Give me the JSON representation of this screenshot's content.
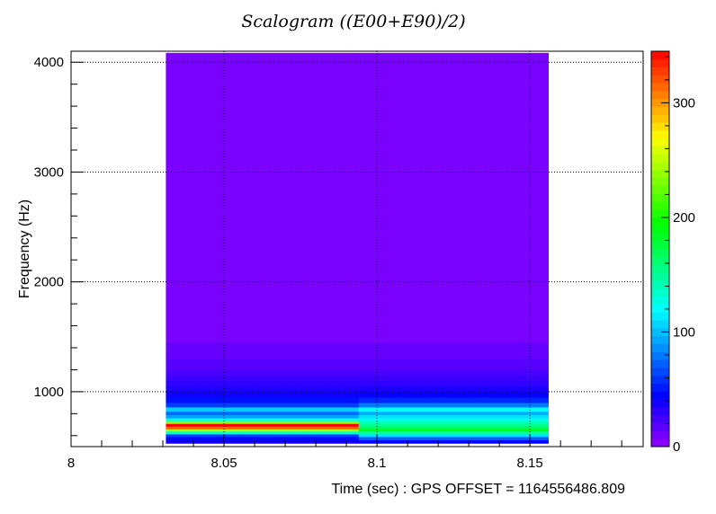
{
  "chart_data": {
    "type": "heatmap",
    "title": "Scalogram ((E00+E90)/2)",
    "xlabel": "Time (sec) : GPS OFFSET = 1164556486.809",
    "ylabel": "Frequency (Hz)",
    "xlim": [
      8.0,
      8.187
    ],
    "ylim": [
      500,
      4100
    ],
    "x_ticks": [
      "8",
      "8.05",
      "8.1",
      "8.15"
    ],
    "y_ticks": [
      "1000",
      "2000",
      "3000",
      "4000"
    ],
    "colorbar_ticks": [
      "0",
      "100",
      "200",
      "300"
    ],
    "zlim": [
      0,
      345
    ],
    "palette": "rainbow",
    "grid": true,
    "data_x_range": [
      8.031,
      8.156
    ],
    "data_y_range": [
      530,
      4085
    ],
    "segments": [
      {
        "x": [
          8.031,
          8.094
        ],
        "bands": [
          {
            "y": [
              530,
              560
            ],
            "z": 38
          },
          {
            "y": [
              560,
              590
            ],
            "z": 46
          },
          {
            "y": [
              590,
              615
            ],
            "z": 62
          },
          {
            "y": [
              615,
              640
            ],
            "z": 130
          },
          {
            "y": [
              640,
              660
            ],
            "z": 245
          },
          {
            "y": [
              660,
              685
            ],
            "z": 315
          },
          {
            "y": [
              685,
              710
            ],
            "z": 345
          },
          {
            "y": [
              710,
              735
            ],
            "z": 240
          },
          {
            "y": [
              735,
              760
            ],
            "z": 120
          },
          {
            "y": [
              760,
              790
            ],
            "z": 92
          },
          {
            "y": [
              790,
              820
            ],
            "z": 75
          },
          {
            "y": [
              820,
              860
            ],
            "z": 105
          },
          {
            "y": [
              860,
              900
            ],
            "z": 62
          },
          {
            "y": [
              900,
              950
            ],
            "z": 48
          },
          {
            "y": [
              950,
              1000
            ],
            "z": 40
          },
          {
            "y": [
              1000,
              1050
            ],
            "z": 35
          },
          {
            "y": [
              1050,
              1100
            ],
            "z": 30
          },
          {
            "y": [
              1100,
              1150
            ],
            "z": 26
          },
          {
            "y": [
              1150,
              1200
            ],
            "z": 22
          },
          {
            "y": [
              1200,
              1300
            ],
            "z": 18
          },
          {
            "y": [
              1300,
              1450
            ],
            "z": 14
          },
          {
            "y": [
              1450,
              4085
            ],
            "z": 8
          }
        ]
      },
      {
        "x": [
          8.094,
          8.156
        ],
        "bands": [
          {
            "y": [
              530,
              560
            ],
            "z": 42
          },
          {
            "y": [
              560,
              590
            ],
            "z": 70
          },
          {
            "y": [
              590,
              615
            ],
            "z": 110
          },
          {
            "y": [
              615,
              640
            ],
            "z": 145
          },
          {
            "y": [
              640,
              660
            ],
            "z": 185
          },
          {
            "y": [
              660,
              685
            ],
            "z": 170
          },
          {
            "y": [
              685,
              710
            ],
            "z": 150
          },
          {
            "y": [
              710,
              735
            ],
            "z": 140
          },
          {
            "y": [
              735,
              760
            ],
            "z": 125
          },
          {
            "y": [
              760,
              790
            ],
            "z": 110
          },
          {
            "y": [
              790,
              820
            ],
            "z": 95
          },
          {
            "y": [
              820,
              860
            ],
            "z": 120
          },
          {
            "y": [
              860,
              900
            ],
            "z": 80
          },
          {
            "y": [
              900,
              950
            ],
            "z": 55
          },
          {
            "y": [
              950,
              1000
            ],
            "z": 42
          },
          {
            "y": [
              1000,
              1050
            ],
            "z": 36
          },
          {
            "y": [
              1050,
              1100
            ],
            "z": 30
          },
          {
            "y": [
              1100,
              1150
            ],
            "z": 26
          },
          {
            "y": [
              1150,
              1200
            ],
            "z": 22
          },
          {
            "y": [
              1200,
              1300
            ],
            "z": 18
          },
          {
            "y": [
              1300,
              1450
            ],
            "z": 14
          },
          {
            "y": [
              1450,
              4085
            ],
            "z": 8
          }
        ]
      }
    ]
  }
}
